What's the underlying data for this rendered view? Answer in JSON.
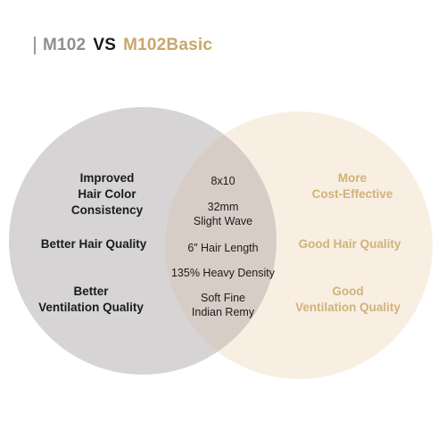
{
  "title": {
    "left": "M102",
    "vs": "VS",
    "right": "M102Basic"
  },
  "colors": {
    "left_circle": "#d6d4d5",
    "right_circle": "#f8efe2",
    "overlap": "#d8cdc6",
    "left_text": "#1b1b1b",
    "right_text": "#d2b27a"
  },
  "left_only": [
    "Improved\nHair Color\nConsistency",
    "Better Hair Quality",
    "Better\nVentilation Quality"
  ],
  "shared": [
    "8x10",
    "32mm\nSlight Wave",
    "6” Hair Length",
    "135% Heavy Density",
    "Soft Fine\nIndian Remy"
  ],
  "right_only": [
    "More\nCost-Effective",
    "Good Hair Quality",
    "Good\nVentilation Quality"
  ]
}
